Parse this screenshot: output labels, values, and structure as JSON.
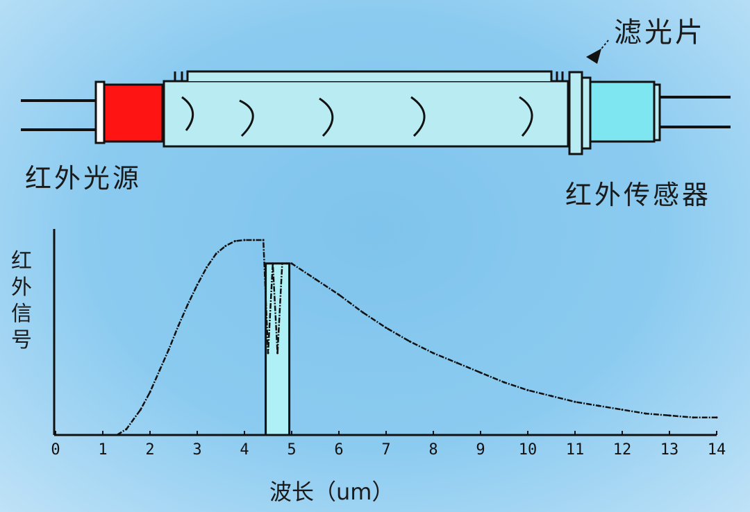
{
  "labels": {
    "source": "红外光源",
    "sensor": "红外传感器",
    "filter": "滤光片"
  },
  "chart_data": {
    "type": "line",
    "xlabel": "波长（um）",
    "ylabel": "红外信号",
    "xlim": [
      0,
      14
    ],
    "x_ticks": [
      "0",
      "1",
      "2",
      "3",
      "4",
      "5",
      "6",
      "7",
      "8",
      "9",
      "10",
      "11",
      "12",
      "13",
      "14"
    ],
    "series": [
      {
        "x": [
          1.3,
          1.5,
          1.8,
          2.0,
          2.2,
          2.4,
          2.6,
          2.8,
          3.0,
          3.2,
          3.4,
          3.6,
          3.8,
          4.0,
          4.2,
          4.4,
          4.5,
          4.6,
          4.7,
          4.8,
          4.9,
          5.0,
          5.5,
          6.0,
          6.5,
          7.0,
          7.5,
          8.0,
          8.5,
          9.0,
          9.5,
          10.0,
          10.5,
          11.0,
          11.5,
          12.0,
          12.5,
          13.0,
          13.5,
          14.0
        ],
        "y": [
          0.0,
          0.03,
          0.13,
          0.22,
          0.33,
          0.44,
          0.56,
          0.67,
          0.77,
          0.86,
          0.93,
          0.97,
          0.995,
          1.0,
          1.0,
          1.0,
          0.42,
          0.88,
          0.42,
          0.88,
          0.88,
          0.88,
          0.8,
          0.72,
          0.63,
          0.55,
          0.48,
          0.42,
          0.37,
          0.32,
          0.27,
          0.23,
          0.2,
          0.17,
          0.15,
          0.13,
          0.11,
          0.1,
          0.09,
          0.09
        ]
      }
    ],
    "band": {
      "x0": 4.45,
      "x1": 4.95,
      "color": "#aef0f5"
    },
    "ylim": [
      0,
      1.05
    ]
  }
}
